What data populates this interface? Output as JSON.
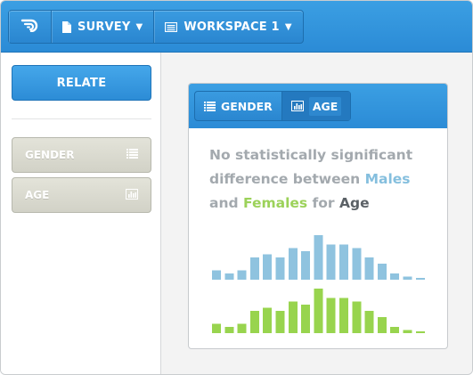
{
  "toolbar": {
    "survey_label": "SURVEY",
    "workspace_label": "WORKSPACE 1",
    "logo_icon": "app-logo-icon",
    "accent": "#2b8bd6"
  },
  "sidebar": {
    "relate_label": "RELATE",
    "items": [
      {
        "label": "GENDER",
        "icon": "list-icon"
      },
      {
        "label": "AGE",
        "icon": "bar-chart-icon"
      }
    ]
  },
  "card": {
    "tabs": [
      {
        "label": "GENDER",
        "icon": "list-icon",
        "active": false
      },
      {
        "label": "AGE",
        "icon": "bar-chart-icon",
        "active": true
      }
    ],
    "summary": {
      "part1": "No statistically significant difference between ",
      "males": "Males",
      "part2": "and ",
      "females": "Females",
      "part3": " for ",
      "variable": "Age"
    }
  },
  "chart_data": {
    "type": "bar",
    "title": "",
    "xlabel": "",
    "ylabel": "",
    "series": [
      {
        "name": "Males",
        "color": "#8fc3df",
        "values": [
          3,
          2,
          3,
          7,
          8,
          7,
          10,
          9,
          14,
          11,
          11,
          10,
          7,
          5,
          2,
          1,
          0.5
        ]
      },
      {
        "name": "Females",
        "color": "#98d44e",
        "values": [
          3,
          2,
          3,
          7,
          8,
          7,
          10,
          9,
          14,
          11,
          11,
          10,
          7,
          5,
          2,
          1,
          0.5
        ]
      }
    ],
    "ylim": [
      0,
      14
    ]
  }
}
